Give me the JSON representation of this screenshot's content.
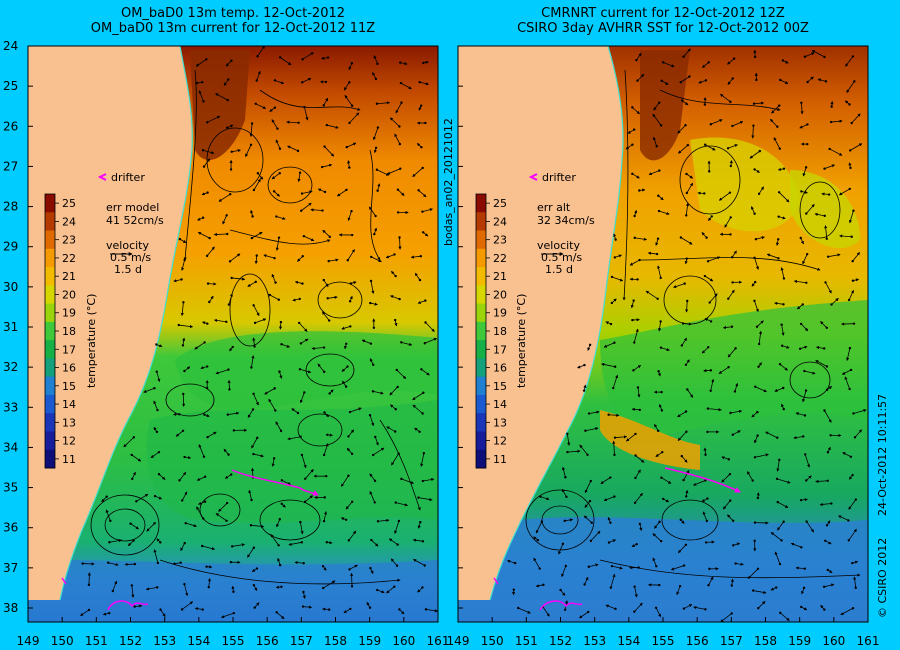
{
  "left_panel": {
    "title_line1": "OM_baD0 13m temp. 12-Oct-2012",
    "title_line2": "OM_baD0 13m current for 12-Oct-2012 11Z",
    "drifter_label": "drifter",
    "err_label": "err model",
    "err_value": "41 52cm/s",
    "velocity_label": "velocity",
    "velocity_scale": "0.5 m/s",
    "velocity_time": "1.5 d"
  },
  "right_panel": {
    "title_line1": "CMRNRT current for 12-Oct-2012 12Z",
    "title_line2": "CSIRO 3day AVHRR SST for 12-Oct-2012 00Z",
    "drifter_label": "drifter",
    "err_label": "err alt",
    "err_value": "32 34cm/s",
    "velocity_label": "velocity",
    "velocity_scale": "0.5 m/s",
    "velocity_time": "1.5 d"
  },
  "colorbar": {
    "label": "temperature (°C)",
    "ticks": [
      "25",
      "24",
      "23",
      "22",
      "21",
      "20",
      "19",
      "18",
      "17",
      "16",
      "15",
      "14",
      "13",
      "12",
      "11"
    ],
    "colors": [
      "#8a0b00",
      "#b53a00",
      "#e06a00",
      "#f59a00",
      "#f2bb00",
      "#d6d600",
      "#9bd40a",
      "#3ec83a",
      "#16b046",
      "#14a07a",
      "#1f7fd0",
      "#1a5ad0",
      "#1a36b8",
      "#161c9a",
      "#0e0e78"
    ]
  },
  "y_ticks": [
    "24",
    "25",
    "26",
    "27",
    "28",
    "29",
    "30",
    "31",
    "32",
    "33",
    "34",
    "35",
    "36",
    "37",
    "38"
  ],
  "x_ticks": [
    "149",
    "150",
    "151",
    "152",
    "153",
    "154",
    "155",
    "156",
    "157",
    "158",
    "159",
    "160",
    "161"
  ],
  "side_label": "bodas_an02_20121012",
  "credit": "CSIRO 2012",
  "timestamp": "24-Oct-2012 10:11:57",
  "colors": {
    "background": "#00ccff",
    "land": "#f9c090",
    "drifter": "#ff00ff",
    "coastline": "#40e0d0"
  }
}
